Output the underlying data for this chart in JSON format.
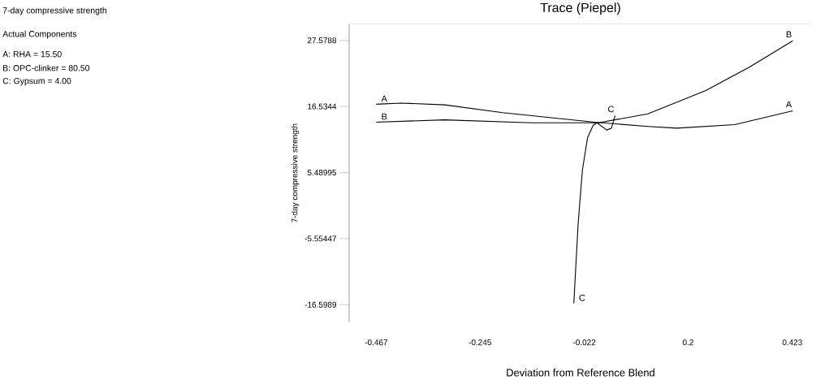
{
  "chart_data": {
    "type": "line",
    "title": "Trace (Piepel)",
    "xlabel": "Deviation from Reference Blend",
    "ylabel": "7-day compressive strength",
    "annotations": [
      "7-day compressive strength",
      "Actual Components",
      "A: RHA = 15.50",
      "B: OPC-clinker = 80.50",
      "C: Gypsum = 4.00"
    ],
    "xlim": [
      -0.525,
      0.465
    ],
    "ylim": [
      -19.5,
      30.3
    ],
    "xticks": [
      -0.467,
      -0.245,
      -0.022,
      0.2,
      0.423
    ],
    "yticks": [
      -16.5989,
      -5.55447,
      5.48995,
      16.5344,
      27.5788
    ],
    "grid": false,
    "legend": false,
    "marker": "none",
    "line_style": "solid",
    "series": [
      {
        "name": "A",
        "color": "#000000",
        "x": [
          -0.467,
          -0.414,
          -0.321,
          -0.197,
          0.0,
          0.114,
          0.176,
          0.3,
          0.424
        ],
        "values": [
          16.9,
          17.1,
          16.8,
          15.5,
          13.9,
          13.2,
          12.9,
          13.5,
          15.8
        ]
      },
      {
        "name": "B",
        "color": "#000000",
        "x": [
          -0.467,
          -0.321,
          -0.135,
          0.008,
          0.114,
          0.238,
          0.331,
          0.424
        ],
        "values": [
          13.9,
          14.3,
          13.8,
          13.8,
          15.3,
          19.2,
          23.1,
          27.5
        ]
      },
      {
        "name": "C",
        "color": "#000000",
        "x": [
          -0.0444,
          -0.035,
          -0.026,
          -0.015,
          -0.003,
          0.005,
          0.026,
          0.036,
          0.044
        ],
        "values": [
          -16.4,
          -2.9,
          5.9,
          11.3,
          13.4,
          13.8,
          12.6,
          12.9,
          15.0
        ]
      }
    ]
  }
}
